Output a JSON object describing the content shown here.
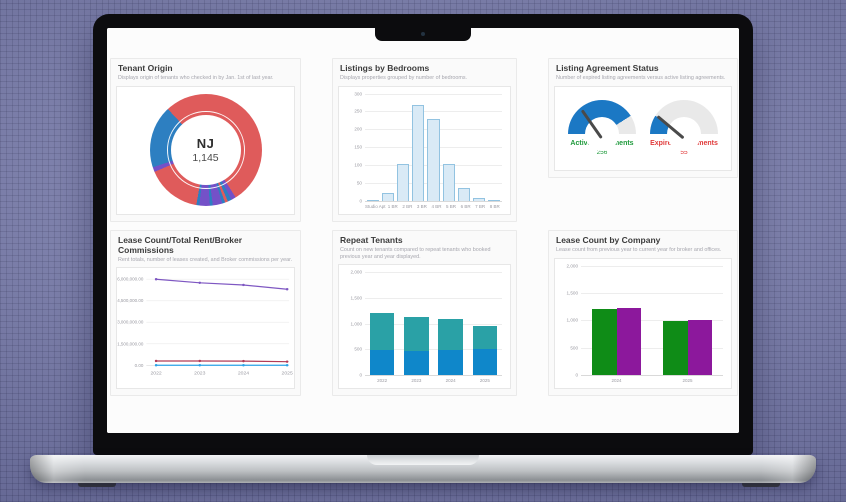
{
  "device": {
    "name": "laptop-mockup"
  },
  "chart_data": [
    {
      "id": "tenant-origin",
      "type": "pie",
      "title": "Tenant Origin",
      "subtitle": "Displays origin of tenants who checked in by Jan. 1st of last year.",
      "center_label": "NJ",
      "center_value": "1,145",
      "segments": [
        {
          "color": "#df5b5b",
          "deg": 148
        },
        {
          "color": "#7451c8",
          "deg": 5
        },
        {
          "color": "#2d7fc1",
          "deg": 4
        },
        {
          "color": "#df5b5b",
          "deg": 3
        },
        {
          "color": "#2d7fc1",
          "deg": 3
        },
        {
          "color": "#7451c8",
          "deg": 10
        },
        {
          "color": "#2d7fc1",
          "deg": 3
        },
        {
          "color": "#7451c8",
          "deg": 11
        },
        {
          "color": "#2d7fc1",
          "deg": 3
        },
        {
          "color": "#df5b5b",
          "deg": 57
        },
        {
          "color": "#7451c8",
          "deg": 5
        },
        {
          "color": "#2d7fc1",
          "deg": 65
        },
        {
          "color": "#df5b5b",
          "deg": 43
        }
      ]
    },
    {
      "id": "listings-by-bedrooms",
      "type": "bar",
      "title": "Listings by Bedrooms",
      "subtitle": "Displays properties grouped by number of bedrooms.",
      "categories": [
        "Studio Apt",
        "1 BR",
        "2 BR",
        "3 BR",
        "4 BR",
        "5 BR",
        "6 BR",
        "7 BR",
        "8 BR"
      ],
      "values": [
        3,
        22,
        103,
        268,
        230,
        103,
        35,
        8,
        3
      ],
      "ylim": [
        0,
        300
      ],
      "y_ticks": [
        "300",
        "250",
        "200",
        "150",
        "100",
        "50",
        "0"
      ],
      "bar_fill": "#d9eaf6",
      "bar_border": "#92c3e1"
    },
    {
      "id": "listing-agreement-status",
      "type": "gauge",
      "title": "Listing Agreement Status",
      "subtitle": "Number of expired listing agreements versus active listing agreements.",
      "fill_color": "#1b78c4",
      "track_color": "#e9e9e9",
      "needle_color": "#4a4a4a",
      "gauges": [
        {
          "label": "Active Agreements",
          "value": "256",
          "fill_pct": 82,
          "needle_deg": -35,
          "label_color": "#1f9a3c"
        },
        {
          "label": "Expired Agreements",
          "value": "55",
          "fill_pct": 18,
          "needle_deg": -50,
          "label_color": "#e03a3a"
        }
      ]
    },
    {
      "id": "lease-rent-commissions",
      "type": "line",
      "title": "Lease Count/Total Rent/Broker Commissions",
      "subtitle": "Rent totals, number of leases created, and Broker commissions per year.",
      "x": [
        "2022",
        "2023",
        "2024",
        "2025"
      ],
      "ylim": [
        0,
        6000000
      ],
      "y_ticks": [
        "6,000,000.00",
        "4,500,000.00",
        "3,000,000.00",
        "1,500,000.00",
        "0.00"
      ],
      "series": [
        {
          "name": "Total Rent",
          "color": "#7e57c2",
          "values": [
            6000000,
            5750000,
            5600000,
            5300000
          ]
        },
        {
          "name": "Broker Commissions",
          "color": "#b23a55",
          "values": [
            300000,
            300000,
            290000,
            250000
          ]
        },
        {
          "name": "Lease Count",
          "color": "#2ba3e8",
          "values": [
            1200,
            1150,
            1100,
            950
          ]
        }
      ]
    },
    {
      "id": "repeat-tenants",
      "type": "bar",
      "stacked": true,
      "title": "Repeat Tenants",
      "subtitle": "Count on new tenants compared to repeat tenants who booked previous year and year displayed.",
      "categories": [
        "2022",
        "2023",
        "2024",
        "2025"
      ],
      "ylim": [
        0,
        2000
      ],
      "y_ticks": [
        "2,000",
        "1,500",
        "1,000",
        "500",
        "0"
      ],
      "series": [
        {
          "name": "blue",
          "color": "#0f87ca",
          "values": [
            480,
            470,
            490,
            500
          ]
        },
        {
          "name": "teal",
          "color": "#2aa1a6",
          "values": [
            720,
            650,
            610,
            450
          ]
        }
      ]
    },
    {
      "id": "lease-count-by-company",
      "type": "bar",
      "grouped": true,
      "title": "Lease Count by Company",
      "subtitle": "Lease count from previous year to current year for broker and offices.",
      "categories": [
        "2024",
        "2025"
      ],
      "ylim": [
        0,
        2000
      ],
      "y_ticks": [
        "2,000",
        "1,500",
        "1,000",
        "500",
        "0"
      ],
      "series": [
        {
          "name": "green",
          "color": "#0f8c17",
          "values": [
            1210,
            990
          ]
        },
        {
          "name": "purple",
          "color": "#8c189c",
          "values": [
            1220,
            1000
          ]
        }
      ]
    }
  ]
}
